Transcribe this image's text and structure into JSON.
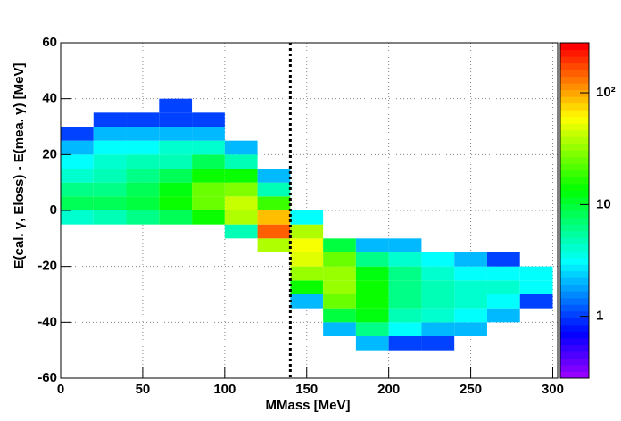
{
  "chart_data": {
    "type": "heatmap",
    "xlabel": "MMass [MeV]",
    "ylabel": "E(cal. γ, Eloss) - E(mea.  γ) [MeV]",
    "x_bins": [
      0,
      20,
      40,
      60,
      80,
      100,
      120,
      140,
      160,
      180,
      200,
      220,
      240,
      260,
      280,
      300
    ],
    "y_bins": [
      -60,
      -55,
      -50,
      -45,
      -40,
      -35,
      -30,
      -25,
      -20,
      -15,
      -10,
      -5,
      0,
      5,
      10,
      15,
      20,
      25,
      30,
      35,
      40,
      45,
      50,
      55,
      60
    ],
    "z": [
      [
        null,
        null,
        null,
        null,
        null,
        null,
        null,
        null,
        null,
        null,
        null,
        null,
        null,
        null,
        null
      ],
      [
        null,
        null,
        null,
        null,
        null,
        null,
        null,
        null,
        null,
        null,
        null,
        null,
        null,
        null,
        null
      ],
      [
        null,
        null,
        null,
        null,
        null,
        null,
        null,
        null,
        null,
        2,
        1,
        1,
        null,
        null,
        null
      ],
      [
        null,
        null,
        null,
        null,
        null,
        null,
        null,
        null,
        2,
        6,
        3,
        2,
        2,
        null,
        null
      ],
      [
        null,
        null,
        null,
        null,
        null,
        null,
        null,
        null,
        10,
        12,
        5,
        4,
        3,
        2,
        null
      ],
      [
        null,
        null,
        null,
        null,
        null,
        null,
        null,
        2,
        25,
        15,
        6,
        5,
        4,
        3,
        1
      ],
      [
        null,
        null,
        null,
        null,
        null,
        null,
        null,
        15,
        35,
        15,
        6,
        5,
        4,
        4,
        3
      ],
      [
        null,
        null,
        null,
        null,
        null,
        null,
        null,
        35,
        35,
        12,
        6,
        4,
        3,
        3,
        3
      ],
      [
        null,
        null,
        null,
        null,
        null,
        null,
        null,
        50,
        25,
        6,
        4,
        3,
        2,
        1,
        null
      ],
      [
        null,
        null,
        null,
        null,
        null,
        null,
        40,
        60,
        10,
        2,
        2,
        null,
        null,
        null,
        null
      ],
      [
        null,
        null,
        null,
        null,
        null,
        5,
        150,
        40,
        null,
        null,
        null,
        null,
        null,
        null,
        null
      ],
      [
        4,
        5,
        6,
        8,
        15,
        40,
        90,
        3,
        null,
        null,
        null,
        null,
        null,
        null,
        null
      ],
      [
        8,
        8,
        10,
        14,
        25,
        45,
        20,
        null,
        null,
        null,
        null,
        null,
        null,
        null,
        null
      ],
      [
        6,
        6,
        8,
        12,
        25,
        30,
        5,
        null,
        null,
        null,
        null,
        null,
        null,
        null,
        null
      ],
      [
        4,
        5,
        6,
        8,
        15,
        15,
        2,
        null,
        null,
        null,
        null,
        null,
        null,
        null,
        null
      ],
      [
        3,
        4,
        5,
        5,
        8,
        5,
        null,
        null,
        null,
        null,
        null,
        null,
        null,
        null,
        null
      ],
      [
        2,
        3,
        3,
        4,
        4,
        2,
        null,
        null,
        null,
        null,
        null,
        null,
        null,
        null,
        null
      ],
      [
        1,
        2,
        2,
        2,
        2,
        null,
        null,
        null,
        null,
        null,
        null,
        null,
        null,
        null,
        null
      ],
      [
        null,
        1,
        1,
        1,
        1,
        null,
        null,
        null,
        null,
        null,
        null,
        null,
        null,
        null,
        null
      ],
      [
        null,
        null,
        null,
        1,
        null,
        null,
        null,
        null,
        null,
        null,
        null,
        null,
        null,
        null,
        null
      ],
      [
        null,
        null,
        null,
        null,
        null,
        null,
        null,
        null,
        null,
        null,
        null,
        null,
        null,
        null,
        null
      ],
      [
        null,
        null,
        null,
        null,
        null,
        null,
        null,
        null,
        null,
        null,
        null,
        null,
        null,
        null,
        null
      ],
      [
        null,
        null,
        null,
        null,
        null,
        null,
        null,
        null,
        null,
        null,
        null,
        null,
        null,
        null,
        null
      ],
      [
        null,
        null,
        null,
        null,
        null,
        null,
        null,
        null,
        null,
        null,
        null,
        null,
        null,
        null,
        null
      ]
    ],
    "xlim": [
      0,
      303
    ],
    "ylim": [
      -60,
      60
    ],
    "xticks": [
      0,
      50,
      100,
      150,
      200,
      250,
      300
    ],
    "yticks": [
      -60,
      -40,
      -20,
      0,
      20,
      40,
      60
    ],
    "zlim": [
      0.28,
      280
    ],
    "zticks": [
      1,
      10,
      {
        "value": 100,
        "label": "10²"
      }
    ],
    "zscale": "log",
    "grid": true,
    "vline": 140
  }
}
